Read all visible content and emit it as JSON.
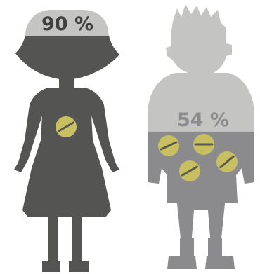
{
  "chart_data": {
    "type": "bar",
    "categories": [
      "female-figure",
      "male-figure"
    ],
    "series": [
      {
        "values": [
          90,
          54
        ]
      }
    ],
    "labels": [
      "90 %",
      "54 %"
    ],
    "pill_counts": [
      1,
      4
    ],
    "ylim": [
      0,
      100
    ]
  },
  "colors": {
    "fill": "#545552",
    "empty": "#c4c4c2",
    "male_fill": "#8b8b8d",
    "pill": "#c7bf62",
    "pill_line": "#5a5a4a"
  },
  "icons": [
    "woman-silhouette-icon",
    "man-silhouette-icon",
    "pill-icon"
  ]
}
